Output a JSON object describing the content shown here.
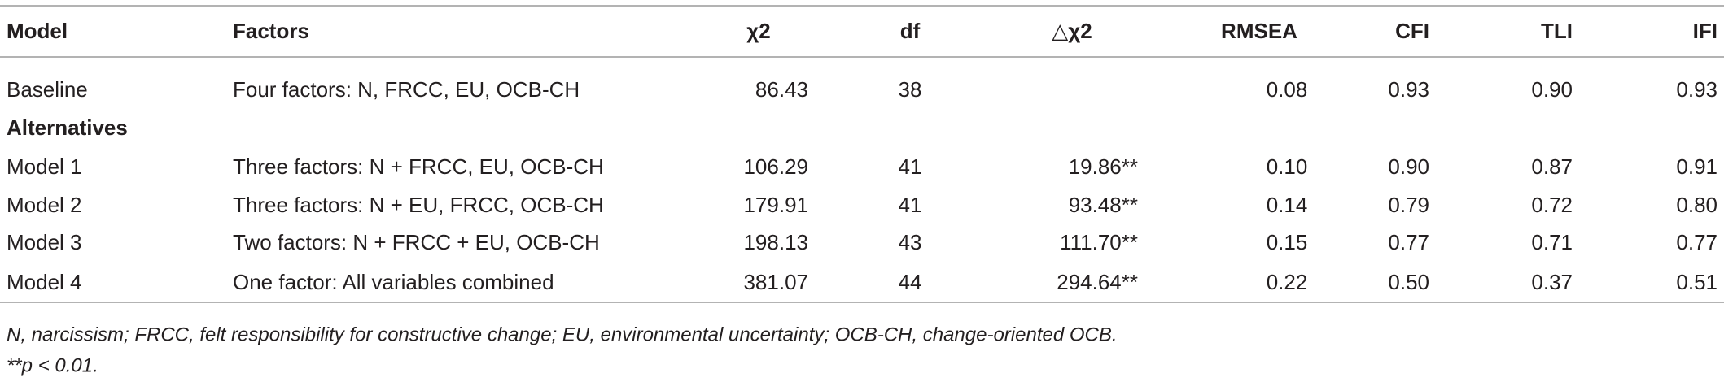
{
  "table": {
    "header": [
      "Model",
      "Factors",
      "χ2",
      "df",
      "△χ2",
      "RMSEA",
      "CFI",
      "TLI",
      "IFI"
    ],
    "baseline": [
      "Baseline",
      "Four factors: N, FRCC, EU, OCB-CH",
      "86.43",
      "38",
      null,
      "0.08",
      "0.93",
      "0.90",
      "0.93"
    ],
    "section_label": "Alternatives",
    "rows": [
      [
        "Model 1",
        "Three factors: N + FRCC, EU, OCB-CH",
        "106.29",
        "41",
        "19.86**",
        "0.10",
        "0.90",
        "0.87",
        "0.91"
      ],
      [
        "Model 2",
        "Three factors: N + EU, FRCC, OCB-CH",
        "179.91",
        "41",
        "93.48**",
        "0.14",
        "0.79",
        "0.72",
        "0.80"
      ],
      [
        "Model 3",
        "Two factors: N + FRCC + EU, OCB-CH",
        "198.13",
        "43",
        "111.70**",
        "0.15",
        "0.77",
        "0.71",
        "0.77"
      ],
      [
        "Model 4",
        "One factor: All variables combined",
        "381.07",
        "44",
        "294.64**",
        "0.22",
        "0.50",
        "0.37",
        "0.51"
      ]
    ]
  },
  "footnotes": [
    "N, narcissism; FRCC, felt responsibility for constructive change; EU, environmental uncertainty; OCB-CH, change-oriented OCB.",
    "**p < 0.01."
  ]
}
